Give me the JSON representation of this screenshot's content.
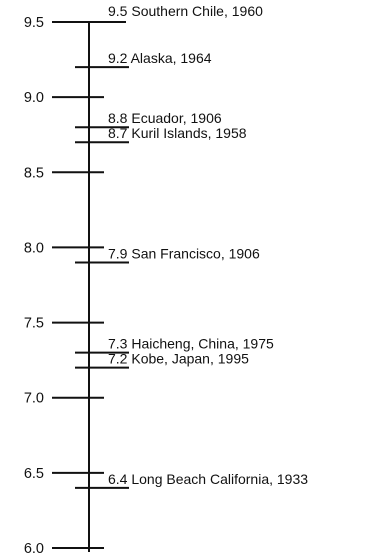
{
  "chart_data": {
    "type": "scatter",
    "orientation": "vertical",
    "title": "",
    "ylabel": "",
    "ylim": [
      6.0,
      9.5
    ],
    "ticks": [
      {
        "value": 9.5,
        "label": "9.5"
      },
      {
        "value": 9.0,
        "label": "9.0"
      },
      {
        "value": 8.5,
        "label": "8.5"
      },
      {
        "value": 8.0,
        "label": "8.0"
      },
      {
        "value": 7.5,
        "label": "7.5"
      },
      {
        "value": 7.0,
        "label": "7.0"
      },
      {
        "value": 6.5,
        "label": "6.5"
      },
      {
        "value": 6.0,
        "label": "6.0"
      }
    ],
    "events": [
      {
        "magnitude": 9.5,
        "label": "9.5 Southern Chile, 1960"
      },
      {
        "magnitude": 9.2,
        "label": "9.2 Alaska, 1964"
      },
      {
        "magnitude": 8.8,
        "label": "8.8 Ecuador, 1906"
      },
      {
        "magnitude": 8.7,
        "label": "8.7 Kuril Islands, 1958"
      },
      {
        "magnitude": 7.9,
        "label": "7.9 San Francisco, 1906"
      },
      {
        "magnitude": 7.3,
        "label": "7.3 Haicheng, China, 1975"
      },
      {
        "magnitude": 7.2,
        "label": "7.2 Kobe, Japan, 1995"
      },
      {
        "magnitude": 6.4,
        "label": "6.4 Long Beach California, 1933"
      }
    ],
    "colors": {
      "line": "#111111",
      "text": "#111111"
    }
  }
}
